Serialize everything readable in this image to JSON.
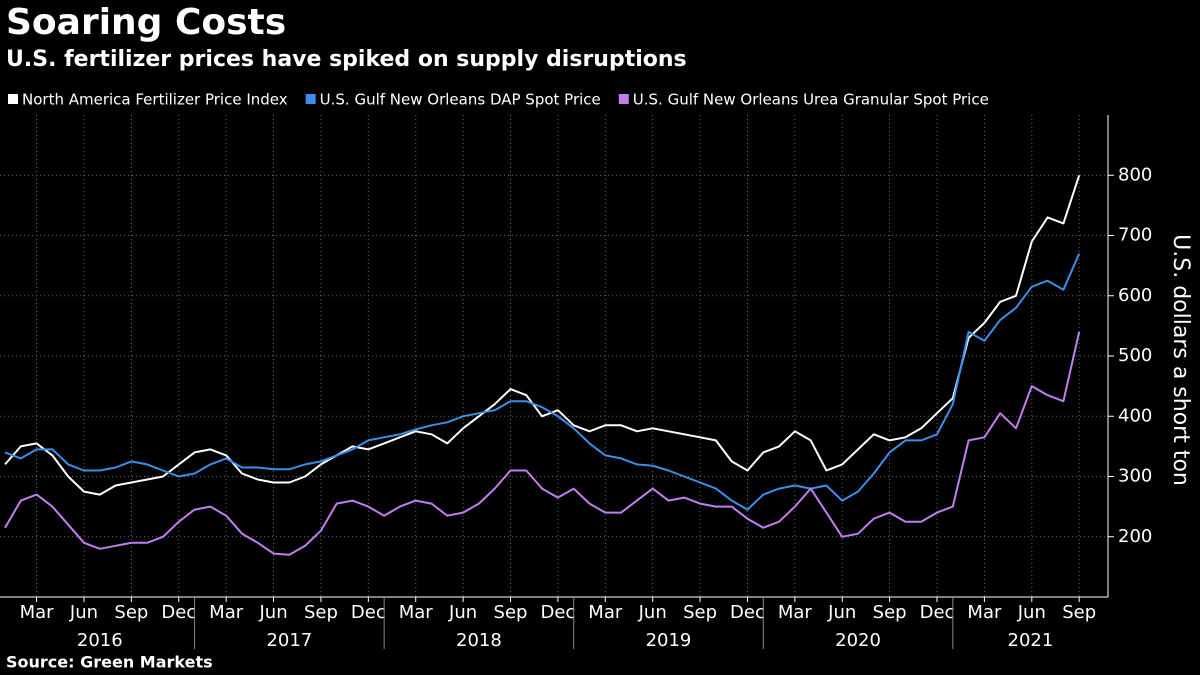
{
  "chart_data": {
    "type": "line",
    "title": "Soaring Costs",
    "subtitle": "U.S. fertilizer prices have spiked on supply disruptions",
    "y_label": "U.S. dollars a short ton",
    "source": "Source:  Green Markets",
    "x": [
      "2016-01",
      "2016-02",
      "2016-03",
      "2016-04",
      "2016-05",
      "2016-06",
      "2016-07",
      "2016-08",
      "2016-09",
      "2016-10",
      "2016-11",
      "2016-12",
      "2017-01",
      "2017-02",
      "2017-03",
      "2017-04",
      "2017-05",
      "2017-06",
      "2017-07",
      "2017-08",
      "2017-09",
      "2017-10",
      "2017-11",
      "2017-12",
      "2018-01",
      "2018-02",
      "2018-03",
      "2018-04",
      "2018-05",
      "2018-06",
      "2018-07",
      "2018-08",
      "2018-09",
      "2018-10",
      "2018-11",
      "2018-12",
      "2019-01",
      "2019-02",
      "2019-03",
      "2019-04",
      "2019-05",
      "2019-06",
      "2019-07",
      "2019-08",
      "2019-09",
      "2019-10",
      "2019-11",
      "2019-12",
      "2020-01",
      "2020-02",
      "2020-03",
      "2020-04",
      "2020-05",
      "2020-06",
      "2020-07",
      "2020-08",
      "2020-09",
      "2020-10",
      "2020-11",
      "2020-12",
      "2021-01",
      "2021-02",
      "2021-03",
      "2021-04",
      "2021-05",
      "2021-06",
      "2021-07",
      "2021-08",
      "2021-09"
    ],
    "series": [
      {
        "name": "North America Fertilizer Price Index",
        "color": "#ffffff",
        "values": [
          320,
          350,
          355,
          335,
          300,
          275,
          270,
          285,
          290,
          295,
          300,
          320,
          340,
          345,
          335,
          305,
          295,
          290,
          290,
          300,
          320,
          335,
          350,
          345,
          355,
          365,
          375,
          370,
          355,
          380,
          400,
          420,
          445,
          435,
          400,
          410,
          385,
          375,
          385,
          385,
          375,
          380,
          375,
          370,
          365,
          360,
          325,
          310,
          340,
          350,
          375,
          360,
          310,
          320,
          345,
          370,
          360,
          365,
          380,
          405,
          430,
          530,
          555,
          590,
          600,
          690,
          730,
          720,
          800
        ]
      },
      {
        "name": "U.S. Gulf New Orleans DAP Spot Price",
        "color": "#3b8eea",
        "values": [
          340,
          330,
          345,
          345,
          320,
          310,
          310,
          315,
          325,
          320,
          310,
          300,
          305,
          320,
          330,
          315,
          315,
          312,
          312,
          320,
          325,
          335,
          345,
          360,
          365,
          370,
          378,
          385,
          390,
          400,
          405,
          410,
          425,
          425,
          415,
          400,
          380,
          355,
          335,
          330,
          320,
          318,
          310,
          300,
          290,
          280,
          260,
          245,
          270,
          280,
          285,
          280,
          285,
          260,
          275,
          305,
          340,
          360,
          360,
          370,
          420,
          540,
          525,
          560,
          580,
          615,
          625,
          610,
          670
        ]
      },
      {
        "name": "U.S. Gulf New Orleans Urea Granular Spot Price",
        "color": "#c27ef0",
        "values": [
          215,
          260,
          270,
          250,
          220,
          190,
          180,
          185,
          190,
          190,
          200,
          225,
          245,
          250,
          235,
          205,
          190,
          172,
          170,
          185,
          210,
          255,
          260,
          250,
          235,
          250,
          260,
          255,
          235,
          240,
          255,
          280,
          310,
          310,
          280,
          265,
          280,
          255,
          240,
          240,
          260,
          280,
          260,
          265,
          255,
          250,
          250,
          230,
          215,
          225,
          250,
          280,
          240,
          200,
          205,
          230,
          240,
          225,
          225,
          240,
          250,
          360,
          365,
          405,
          380,
          450,
          435,
          425,
          540
        ]
      }
    ],
    "xlim": [
      "2016-01",
      "2021-10"
    ],
    "xticks": [
      {
        "value": "2016-03",
        "label": "Mar"
      },
      {
        "value": "2016-06",
        "label": "Jun"
      },
      {
        "value": "2016-09",
        "label": "Sep"
      },
      {
        "value": "2016-12",
        "label": "Dec"
      },
      {
        "value": "2017-03",
        "label": "Mar"
      },
      {
        "value": "2017-06",
        "label": "Jun"
      },
      {
        "value": "2017-09",
        "label": "Sep"
      },
      {
        "value": "2017-12",
        "label": "Dec"
      },
      {
        "value": "2018-03",
        "label": "Mar"
      },
      {
        "value": "2018-06",
        "label": "Jun"
      },
      {
        "value": "2018-09",
        "label": "Sep"
      },
      {
        "value": "2018-12",
        "label": "Dec"
      },
      {
        "value": "2019-03",
        "label": "Mar"
      },
      {
        "value": "2019-06",
        "label": "Jun"
      },
      {
        "value": "2019-09",
        "label": "Sep"
      },
      {
        "value": "2019-12",
        "label": "Dec"
      },
      {
        "value": "2020-03",
        "label": "Mar"
      },
      {
        "value": "2020-06",
        "label": "Jun"
      },
      {
        "value": "2020-09",
        "label": "Sep"
      },
      {
        "value": "2020-12",
        "label": "Dec"
      },
      {
        "value": "2021-03",
        "label": "Mar"
      },
      {
        "value": "2021-06",
        "label": "Jun"
      },
      {
        "value": "2021-09",
        "label": "Sep"
      }
    ],
    "years": [
      "2016",
      "2017",
      "2018",
      "2019",
      "2020",
      "2021"
    ],
    "ylim": [
      100,
      900
    ],
    "yticks": [
      200,
      300,
      400,
      500,
      600,
      700,
      800
    ],
    "grid": true,
    "legend": "top-left"
  }
}
